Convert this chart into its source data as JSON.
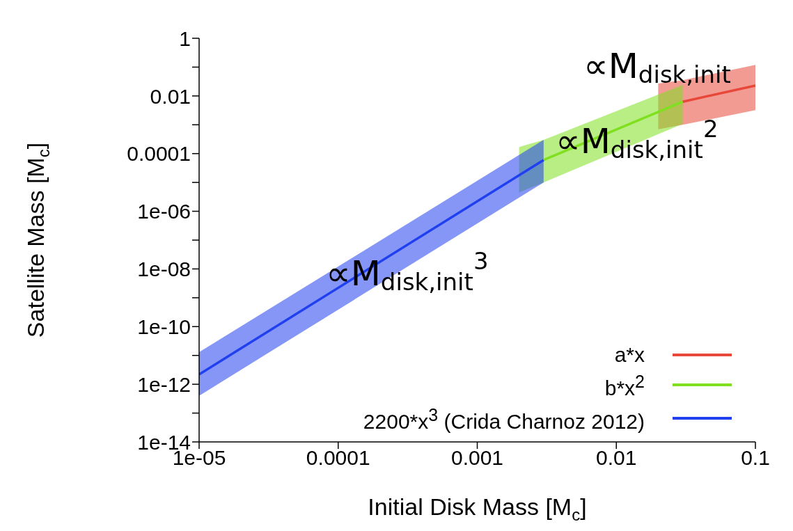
{
  "chart_data": {
    "type": "line",
    "xlabel": "Initial Disk Mass [M$_{c}$]",
    "ylabel": "Satellite Mass [M$_{c}$]",
    "log": "xy",
    "xlim": [
      1e-05,
      0.1
    ],
    "xticks": [
      {
        "value": 1e-05,
        "label": "1e-05"
      },
      0.0001,
      0.001,
      0.01,
      0.1
    ],
    "ylim": [
      1e-14,
      1
    ],
    "yticks": [
      {
        "value": 1e-14,
        "label": "1e-14"
      },
      {
        "value": 1e-13,
        "label": null
      },
      {
        "value": 1e-12,
        "label": "1e-12"
      },
      {
        "value": 1e-11,
        "label": null
      },
      {
        "value": 1e-10,
        "label": "1e-10"
      },
      {
        "value": 1e-09,
        "label": null
      },
      {
        "value": 1e-08,
        "label": "1e-08"
      },
      {
        "value": 1e-07,
        "label": null
      },
      {
        "value": 1e-06,
        "label": "1e-06"
      },
      {
        "value": 1e-05,
        "label": null
      },
      0.0001,
      {
        "value": 0.001,
        "label": null
      },
      0.01,
      {
        "value": 0.1,
        "label": null
      },
      1
    ],
    "grid": false,
    "legend": "bottom right",
    "line_style": "solid",
    "marker": "none",
    "series": [
      {
        "name": "a*x",
        "color": "#e8483a",
        "x": [
          0.02,
          0.03,
          0.1
        ],
        "values": [
          null,
          0.0063,
          0.023
        ],
        "lower": [
          0.0007,
          0.001,
          0.0032
        ],
        "upper": [
          0.027,
          0.035,
          0.12
        ]
      },
      {
        "name": "b*x$^{2}$",
        "color": "#80e020",
        "x": [
          0.002,
          0.003,
          0.03
        ],
        "values": [
          null,
          6e-05,
          0.0063
        ],
        "lower": [
          4.5e-06,
          1e-05,
          0.00107
        ],
        "upper": [
          0.00017,
          0.0003,
          0.024
        ]
      },
      {
        "name": "2200*x$^{3}$ (Crida  Charnoz 2012)",
        "color": "#2040f0",
        "x": [
          1e-05,
          0.003
        ],
        "values": [
          2.2e-12,
          6e-05
        ],
        "lower": [
          4e-13,
          1e-05
        ],
        "upper": [
          1.3e-11,
          0.0003
        ]
      }
    ],
    "annotations": [
      "∝M$_{disk,init}$$^{3}$",
      "∝M$_{disk,init}$$^{2}$",
      "∝M$_{disk,init}$"
    ]
  }
}
